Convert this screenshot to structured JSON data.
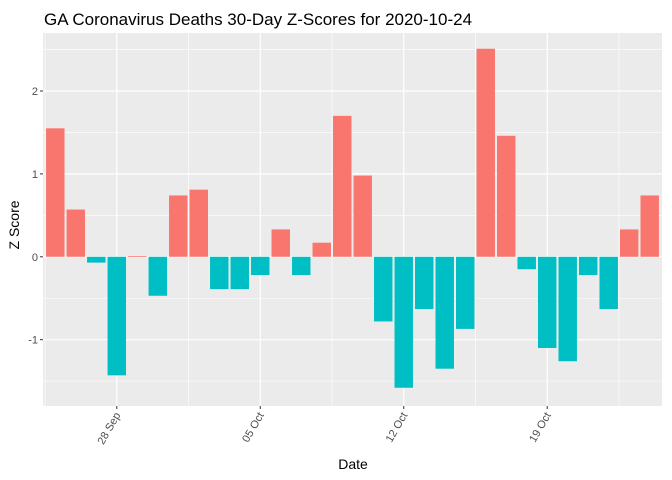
{
  "chart_data": {
    "type": "bar",
    "title": "GA Coronavirus Deaths 30-Day Z-Scores for 2020-10-24",
    "xlabel": "Date",
    "ylabel": "Z Score",
    "ylim": [
      -1.8,
      2.7
    ],
    "y_ticks": [
      -1,
      0,
      1,
      2
    ],
    "x_ticks": [
      {
        "date": "2020-09-28",
        "label": "28 Sep"
      },
      {
        "date": "2020-10-05",
        "label": "05 Oct"
      },
      {
        "date": "2020-10-12",
        "label": "12 Oct"
      },
      {
        "date": "2020-10-19",
        "label": "19 Oct"
      }
    ],
    "grid": true,
    "legend": "none",
    "colors": {
      "positive": "#F8766D",
      "negative": "#00BFC4",
      "panel": "#EBEBEB",
      "grid": "#FFFFFF"
    },
    "x": [
      "2020-09-25",
      "2020-09-26",
      "2020-09-27",
      "2020-09-28",
      "2020-09-29",
      "2020-09-30",
      "2020-10-01",
      "2020-10-02",
      "2020-10-03",
      "2020-10-04",
      "2020-10-05",
      "2020-10-06",
      "2020-10-07",
      "2020-10-08",
      "2020-10-09",
      "2020-10-10",
      "2020-10-11",
      "2020-10-12",
      "2020-10-13",
      "2020-10-14",
      "2020-10-15",
      "2020-10-16",
      "2020-10-17",
      "2020-10-18",
      "2020-10-19",
      "2020-10-20",
      "2020-10-21",
      "2020-10-22",
      "2020-10-23",
      "2020-10-24"
    ],
    "values": [
      1.55,
      0.57,
      -0.07,
      -1.43,
      0.01,
      -0.47,
      0.74,
      0.81,
      -0.39,
      -0.39,
      -0.22,
      0.33,
      -0.22,
      0.17,
      1.7,
      0.98,
      -0.78,
      -1.58,
      -0.63,
      -1.35,
      -0.87,
      2.51,
      1.46,
      -0.15,
      -1.1,
      -1.26,
      -0.22,
      -0.63,
      0.33,
      0.74
    ]
  }
}
